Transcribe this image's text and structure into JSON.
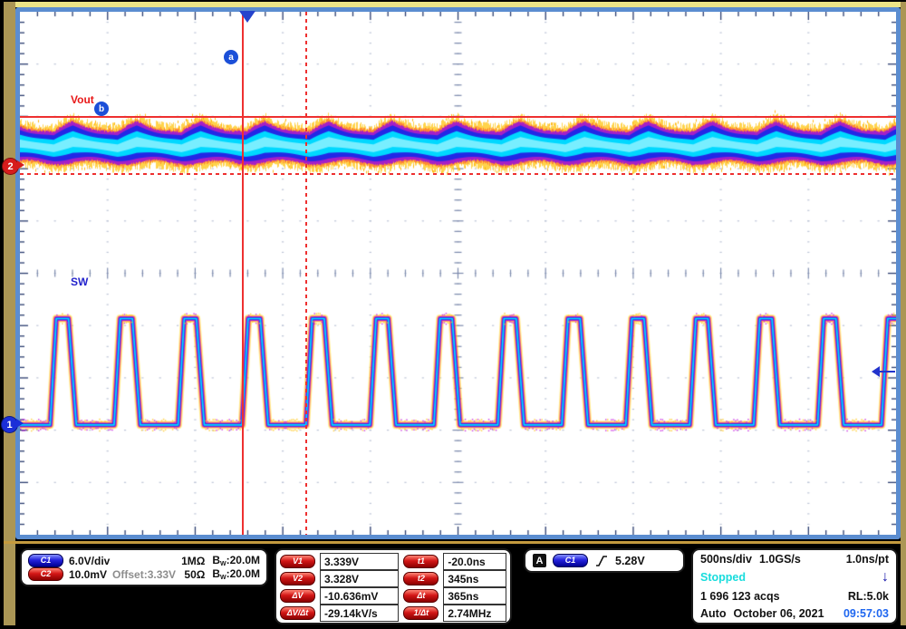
{
  "graticule": {
    "labels": {
      "vout": "Vout",
      "sw": "SW"
    },
    "markers": {
      "a": "a",
      "b": "b"
    },
    "channel_markers": {
      "ch1": "1",
      "ch2": "2"
    }
  },
  "panels": {
    "channels": {
      "ch1": {
        "badge": "C1",
        "scale": "6.0V/div",
        "impedance": "1MΩ",
        "bw_b": "B",
        "bw_sub": "W",
        "bw_rest": ":20.0M"
      },
      "ch2": {
        "badge": "C2",
        "scale": "10.0mV",
        "offset": "Offset:3.33V",
        "impedance": "50Ω",
        "bw_b": "B",
        "bw_sub": "W",
        "bw_rest": ":20.0M"
      }
    },
    "measurements": {
      "voltage": [
        {
          "badge": "V1",
          "value": "3.339V"
        },
        {
          "badge": "V2",
          "value": "3.328V"
        },
        {
          "badge": "ΔV",
          "value": "-10.636mV"
        },
        {
          "badge": "ΔV/Δt",
          "value": "-29.14kV/s"
        }
      ],
      "time": [
        {
          "badge": "t1",
          "value": "-20.0ns"
        },
        {
          "badge": "t2",
          "value": "345ns"
        },
        {
          "badge": "Δt",
          "value": "365ns"
        },
        {
          "badge": "1/Δt",
          "value": "2.74MHz"
        }
      ]
    },
    "trigger": {
      "system": "A",
      "source": "C1",
      "level": "5.28V"
    },
    "horizontal": {
      "timebase": "500ns/div",
      "sample_rate": "1.0GS/s",
      "resolution": "1.0ns/pt",
      "status": "Stopped",
      "acquisitions": "1 696 123 acqs",
      "record_length": "RL:5.0k",
      "trigger_mode": "Auto",
      "date": "October 06, 2021",
      "time": "09:57:03"
    }
  },
  "colors": {
    "bezel_tan": "#ab9655",
    "frame_blue": "#5b8dd0",
    "cursor_red": "#ee3030",
    "ch1_blue": "#1b2fd8",
    "ch2_red": "#d61c1c",
    "stopped_cyan": "#18dcdc",
    "clock_blue": "#1e66f0",
    "trace_cyan": "#00dcff",
    "trace_yellow": "#ffc81e"
  },
  "chart_data": {
    "type": "line",
    "title": "DC/DC converter waveforms: Vout ripple (C2) and SW node (C1)",
    "x_axis": {
      "ns_per_div": 500,
      "divisions": 10,
      "trigger_position_div": 2.57
    },
    "y_axis": {
      "divisions": 10
    },
    "series": [
      {
        "name": "SW",
        "channel": 1,
        "volts_per_div": 6.0,
        "low_v": 0.0,
        "high_v": 12.2,
        "period_ns": 365,
        "frequency_mhz": 2.74,
        "duty": 0.3,
        "rise_ns": 35,
        "fall_ns": 45,
        "base_div": 7.9
      },
      {
        "name": "Vout",
        "channel": 2,
        "mv_per_div": 10.0,
        "mean_v": 3.333,
        "band_mv_pp": 6.5,
        "center_div": 2.55
      }
    ],
    "cursors": {
      "a_time_ns": -20.0,
      "b_time_ns": 345,
      "delta_t_ns": 365,
      "inv_delta_t": "2.74MHz",
      "v1_V": 3.339,
      "v2_V": 3.328,
      "delta_v_mV": -10.636,
      "dv_dt": "-29.14kV/s"
    },
    "trigger": {
      "source": "C1",
      "slope": "rising",
      "level_V": 5.28
    }
  }
}
